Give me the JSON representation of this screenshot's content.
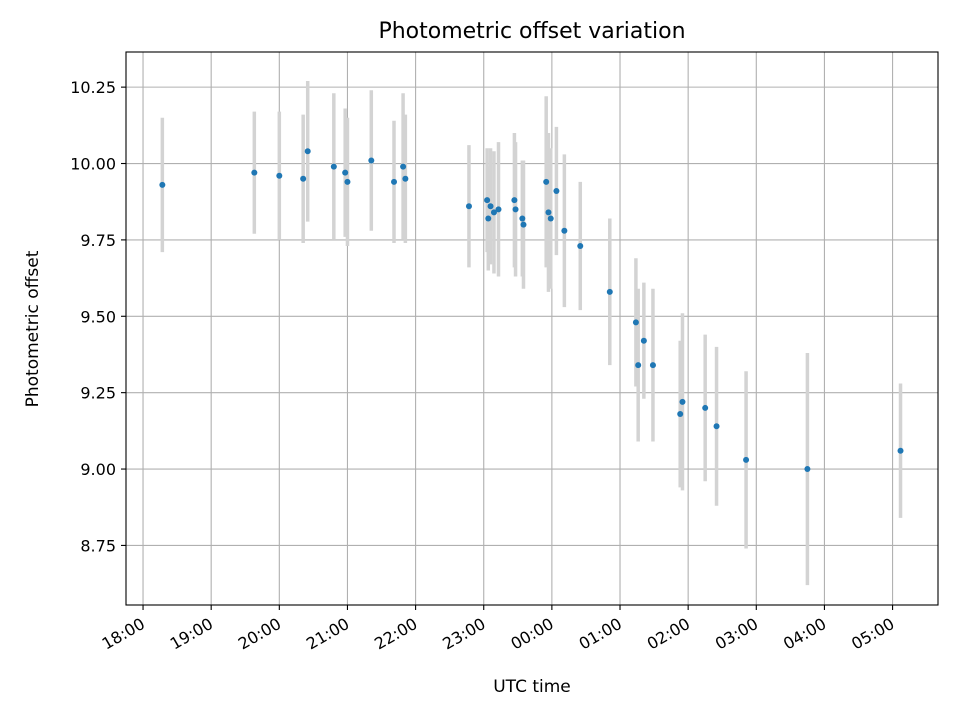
{
  "chart_data": {
    "type": "scatter",
    "title": "Photometric offset variation",
    "xlabel": "UTC time",
    "ylabel": "Photometric offset",
    "x_range": [
      "17:45",
      "05:40"
    ],
    "ylim": [
      8.555,
      10.365
    ],
    "grid": true,
    "x_ticks": [
      "18:00",
      "19:00",
      "20:00",
      "21:00",
      "22:00",
      "23:00",
      "00:00",
      "01:00",
      "02:00",
      "03:00",
      "04:00",
      "05:00"
    ],
    "y_ticks": [
      "8.75",
      "9.00",
      "9.25",
      "9.50",
      "9.75",
      "10.00",
      "10.25"
    ],
    "series": [
      {
        "error_bar_color": "#d3d3d3",
        "marker_color": "#1f77b4",
        "points": [
          {
            "t": "18:17",
            "y": 9.93,
            "err": 0.22
          },
          {
            "t": "19:38",
            "y": 9.97,
            "err": 0.2
          },
          {
            "t": "20:00",
            "y": 9.96,
            "err": 0.21
          },
          {
            "t": "20:21",
            "y": 9.95,
            "err": 0.21
          },
          {
            "t": "20:25",
            "y": 10.04,
            "err": 0.23
          },
          {
            "t": "20:48",
            "y": 9.99,
            "err": 0.24
          },
          {
            "t": "20:58",
            "y": 9.97,
            "err": 0.21
          },
          {
            "t": "21:00",
            "y": 9.94,
            "err": 0.21
          },
          {
            "t": "21:21",
            "y": 10.01,
            "err": 0.23
          },
          {
            "t": "21:41",
            "y": 9.94,
            "err": 0.2
          },
          {
            "t": "21:49",
            "y": 9.99,
            "err": 0.24
          },
          {
            "t": "21:51",
            "y": 9.95,
            "err": 0.21
          },
          {
            "t": "22:47",
            "y": 9.86,
            "err": 0.2
          },
          {
            "t": "23:03",
            "y": 9.88,
            "err": 0.17
          },
          {
            "t": "23:04",
            "y": 9.82,
            "err": 0.17
          },
          {
            "t": "23:06",
            "y": 9.86,
            "err": 0.19
          },
          {
            "t": "23:09",
            "y": 9.84,
            "err": 0.2
          },
          {
            "t": "23:13",
            "y": 9.85,
            "err": 0.22
          },
          {
            "t": "23:27",
            "y": 9.88,
            "err": 0.22
          },
          {
            "t": "23:28",
            "y": 9.85,
            "err": 0.22
          },
          {
            "t": "23:34",
            "y": 9.82,
            "err": 0.19
          },
          {
            "t": "23:35",
            "y": 9.8,
            "err": 0.21
          },
          {
            "t": "23:55",
            "y": 9.94,
            "err": 0.28
          },
          {
            "t": "23:57",
            "y": 9.84,
            "err": 0.26
          },
          {
            "t": "23:59",
            "y": 9.82,
            "err": 0.23
          },
          {
            "t": "00:04",
            "y": 9.91,
            "err": 0.21
          },
          {
            "t": "00:11",
            "y": 9.78,
            "err": 0.25
          },
          {
            "t": "00:25",
            "y": 9.73,
            "err": 0.21
          },
          {
            "t": "00:51",
            "y": 9.58,
            "err": 0.24
          },
          {
            "t": "01:14",
            "y": 9.48,
            "err": 0.21
          },
          {
            "t": "01:16",
            "y": 9.34,
            "err": 0.25
          },
          {
            "t": "01:21",
            "y": 9.42,
            "err": 0.19
          },
          {
            "t": "01:29",
            "y": 9.34,
            "err": 0.25
          },
          {
            "t": "01:53",
            "y": 9.18,
            "err": 0.24
          },
          {
            "t": "01:55",
            "y": 9.22,
            "err": 0.29
          },
          {
            "t": "02:15",
            "y": 9.2,
            "err": 0.24
          },
          {
            "t": "02:25",
            "y": 9.14,
            "err": 0.26
          },
          {
            "t": "02:51",
            "y": 9.03,
            "err": 0.29
          },
          {
            "t": "03:45",
            "y": 9.0,
            "err": 0.38
          },
          {
            "t": "05:07",
            "y": 9.06,
            "err": 0.22
          }
        ]
      }
    ]
  }
}
